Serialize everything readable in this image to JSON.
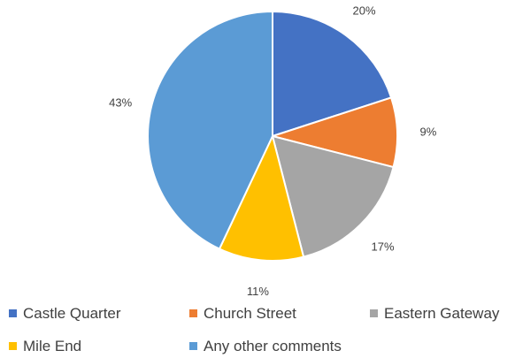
{
  "chart_data": {
    "type": "pie",
    "title": "",
    "slices": [
      {
        "name": "Castle Quarter",
        "value": 20,
        "label": "20%",
        "color": "#4472C4"
      },
      {
        "name": "Church Street",
        "value": 9,
        "label": "9%",
        "color": "#ED7D31"
      },
      {
        "name": "Eastern Gateway",
        "value": 17,
        "label": "17%",
        "color": "#A5A5A5"
      },
      {
        "name": "Mile End",
        "value": 11,
        "label": "11%",
        "color": "#FFC000"
      },
      {
        "name": "Any other comments",
        "value": 43,
        "label": "43%",
        "color": "#5B9BD5"
      }
    ],
    "start_angle_deg": 0,
    "direction": "clockwise",
    "legend_position": "bottom"
  }
}
